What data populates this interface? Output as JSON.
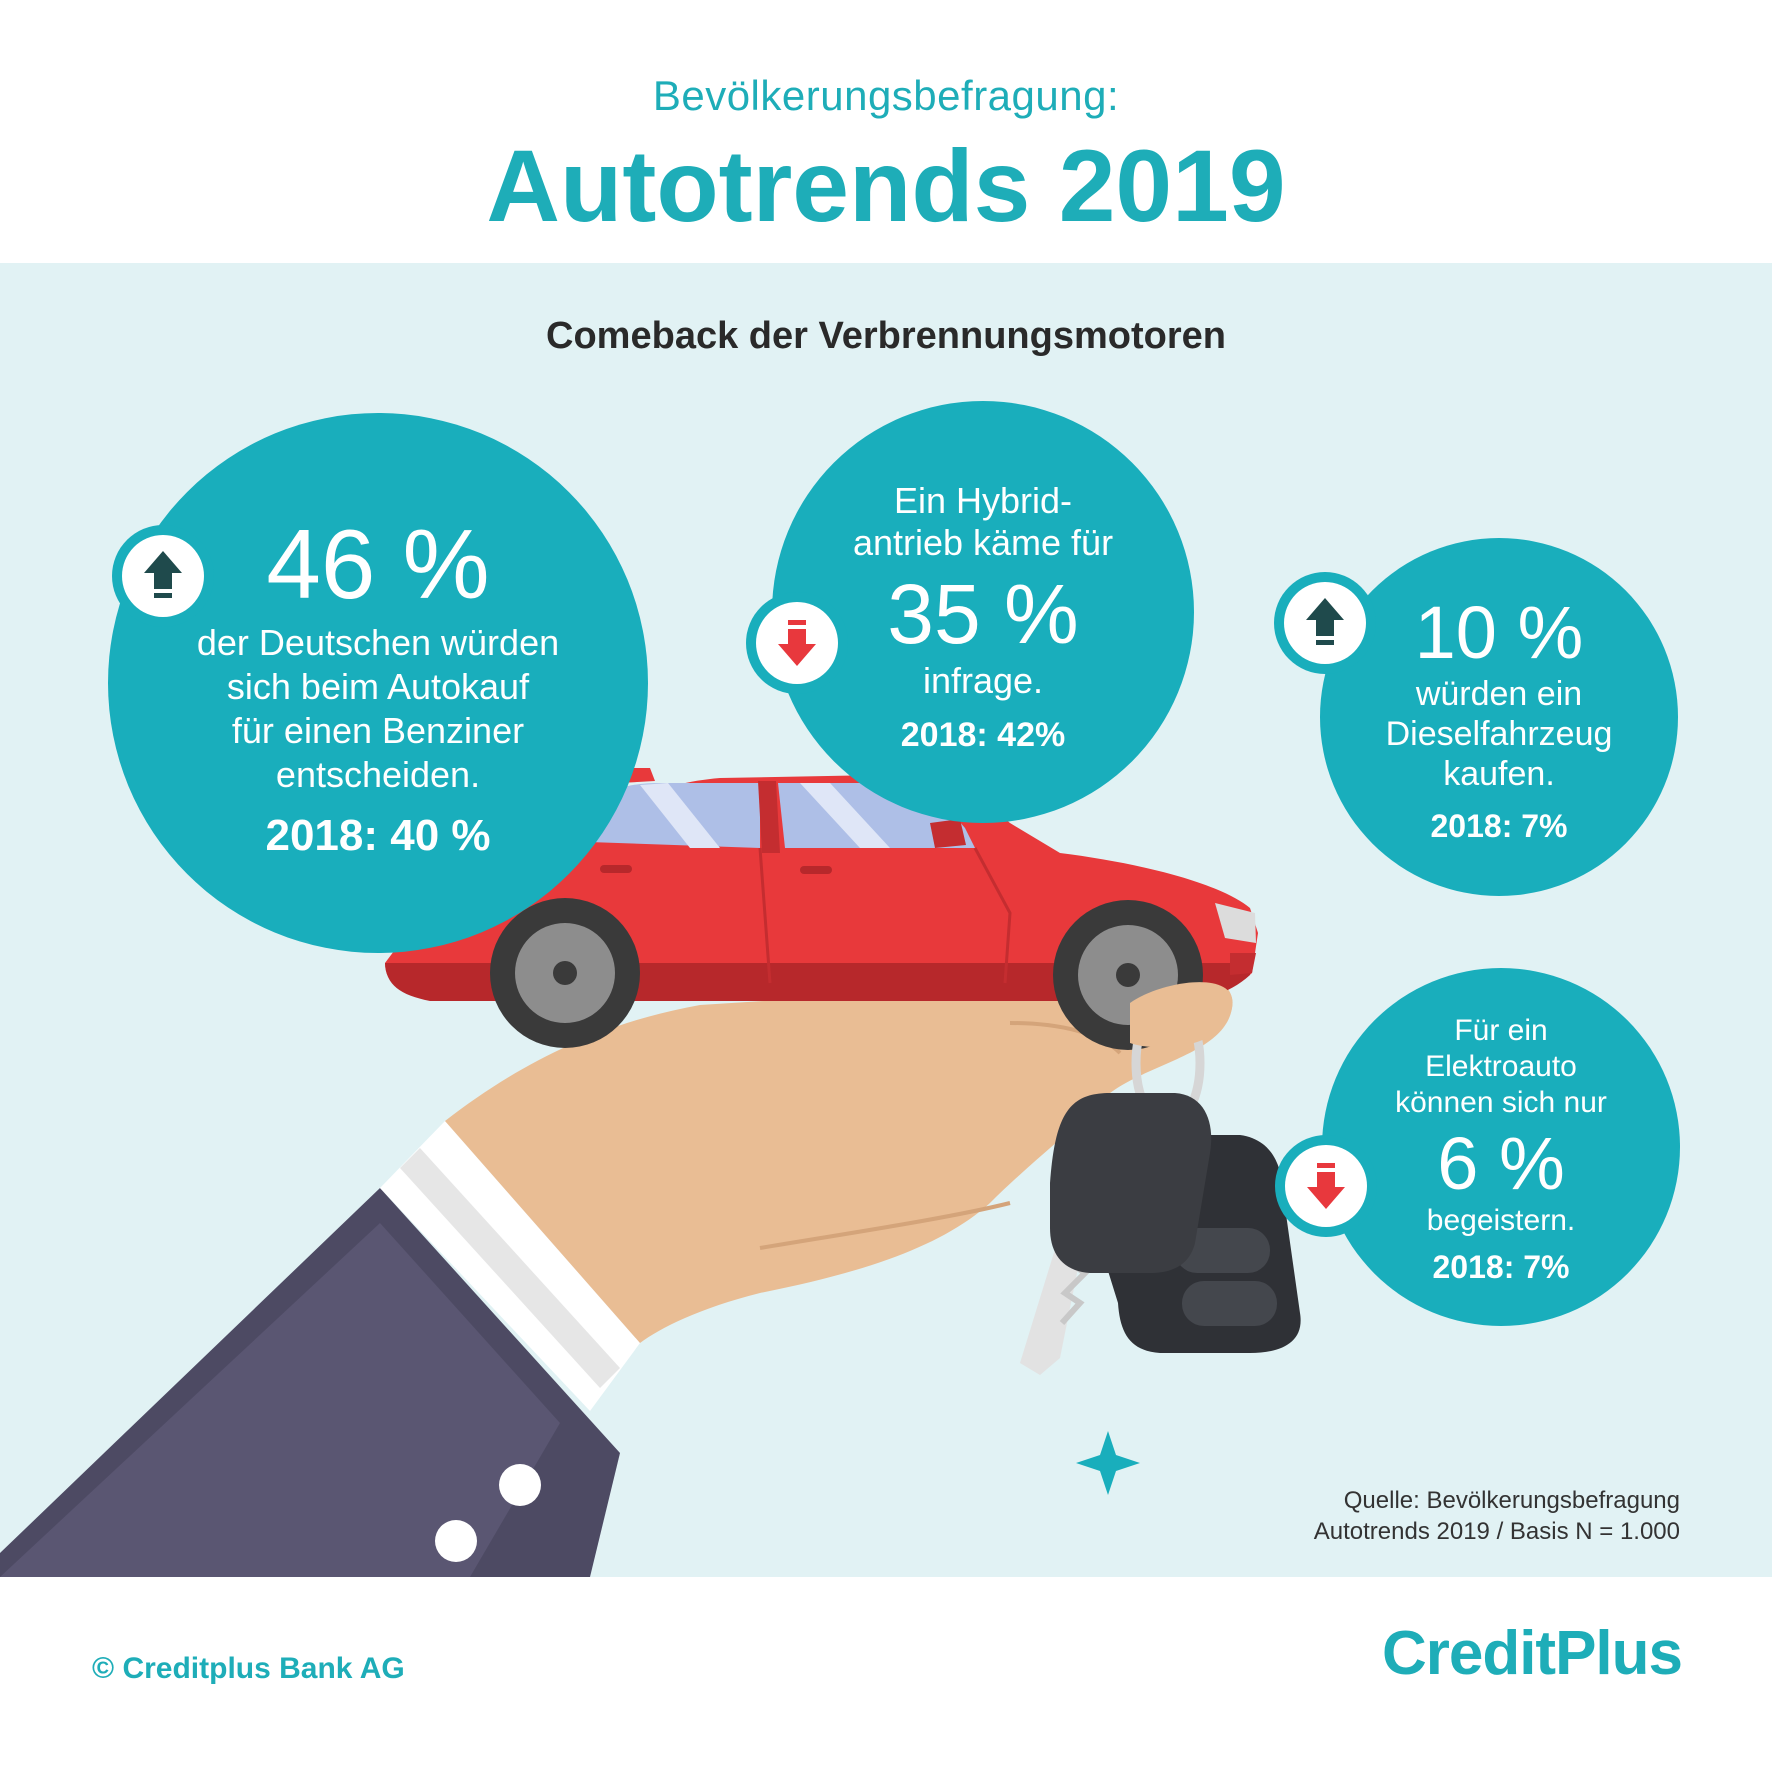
{
  "header": {
    "subtitle": "Bevölkerungsbefragung:",
    "title": "Autotrends 2019"
  },
  "section": {
    "title": "Comeback der Verbrennungsmotoren"
  },
  "stats": {
    "benzin": {
      "trend": "up",
      "value": "46 %",
      "line1": "der Deutschen würden",
      "line2": "sich beim Autokauf",
      "line3": "für einen Benziner",
      "line4": "entscheiden.",
      "previous": "2018: 40 %"
    },
    "hybrid": {
      "trend": "down",
      "line1": "Ein Hybrid-",
      "line2": "antrieb käme für",
      "value": "35 %",
      "line3": "infrage.",
      "previous": "2018: 42%"
    },
    "diesel": {
      "trend": "up",
      "value": "10 %",
      "line1": "würden ein",
      "line2": "Dieselfahrzeug",
      "line3": "kaufen.",
      "previous": "2018: 7%"
    },
    "elektro": {
      "trend": "down",
      "line1": "Für ein",
      "line2": "Elektroauto",
      "line3": "können sich nur",
      "value": "6 %",
      "line4": "begeistern.",
      "previous": "2018: 7%"
    }
  },
  "source": {
    "line1": "Quelle: Bevölkerungsbefragung",
    "line2": "Autotrends 2019 / Basis N = 1.000"
  },
  "footer": {
    "copyright": "© Creditplus Bank AG",
    "logo_text": "CreditPlus"
  },
  "colors": {
    "teal": "#19aebc",
    "panel": "#e1f2f4",
    "up_arrow": "#1f4a4c",
    "down_arrow": "#e8383d",
    "car": "#e8393b"
  }
}
